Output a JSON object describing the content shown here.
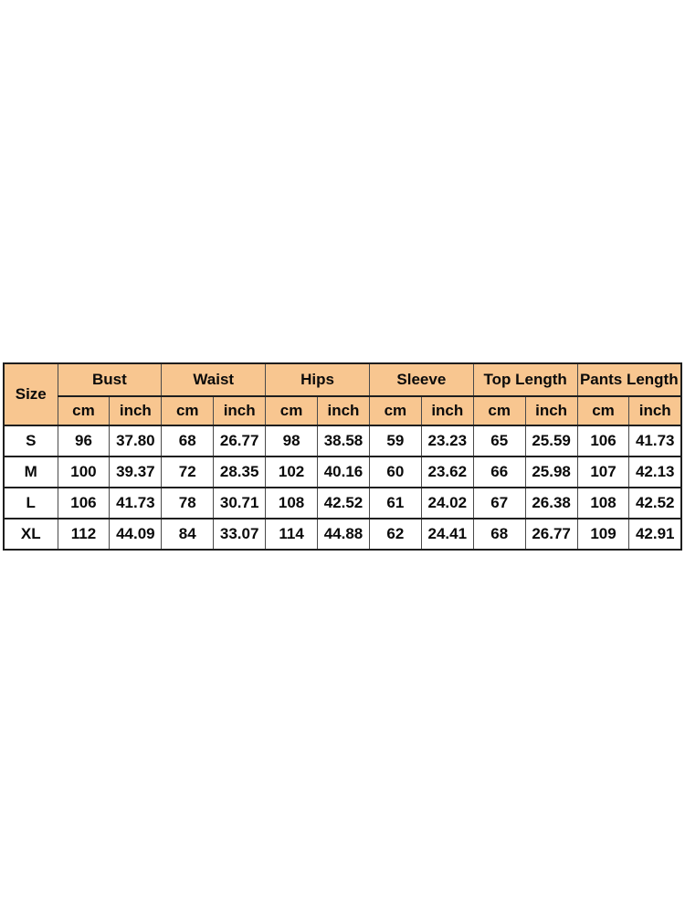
{
  "page": {
    "background_color": "#ffffff"
  },
  "table": {
    "header_bg_color": "#f8c690",
    "border_color": "#1e1e1e",
    "corner": "Size",
    "unit_cm": "cm",
    "unit_inch": "inch",
    "groups": [
      {
        "label": "Bust"
      },
      {
        "label": "Waist"
      },
      {
        "label": "Hips"
      },
      {
        "label": "Sleeve"
      },
      {
        "label": "Top Length"
      },
      {
        "label": "Pants Length"
      }
    ],
    "rows": [
      {
        "size": "S",
        "cells": [
          "96",
          "37.80",
          "68",
          "26.77",
          "98",
          "38.58",
          "59",
          "23.23",
          "65",
          "25.59",
          "106",
          "41.73"
        ]
      },
      {
        "size": "M",
        "cells": [
          "100",
          "39.37",
          "72",
          "28.35",
          "102",
          "40.16",
          "60",
          "23.62",
          "66",
          "25.98",
          "107",
          "42.13"
        ]
      },
      {
        "size": "L",
        "cells": [
          "106",
          "41.73",
          "78",
          "30.71",
          "108",
          "42.52",
          "61",
          "24.02",
          "67",
          "26.38",
          "108",
          "42.52"
        ]
      },
      {
        "size": "XL",
        "cells": [
          "112",
          "44.09",
          "84",
          "33.07",
          "114",
          "44.88",
          "62",
          "24.41",
          "68",
          "26.77",
          "109",
          "42.91"
        ]
      }
    ]
  },
  "chart_data": {
    "type": "table",
    "columns": [
      "Size",
      "Bust cm",
      "Bust inch",
      "Waist cm",
      "Waist inch",
      "Hips cm",
      "Hips inch",
      "Sleeve cm",
      "Sleeve inch",
      "Top Length cm",
      "Top Length inch",
      "Pants Length cm",
      "Pants Length inch"
    ],
    "rows": [
      [
        "S",
        96,
        37.8,
        68,
        26.77,
        98,
        38.58,
        59,
        23.23,
        65,
        25.59,
        106,
        41.73
      ],
      [
        "M",
        100,
        39.37,
        72,
        28.35,
        102,
        40.16,
        60,
        23.62,
        66,
        25.98,
        107,
        42.13
      ],
      [
        "L",
        106,
        41.73,
        78,
        30.71,
        108,
        42.52,
        61,
        24.02,
        67,
        26.38,
        108,
        42.52
      ],
      [
        "XL",
        112,
        44.09,
        84,
        33.07,
        114,
        44.88,
        62,
        24.41,
        68,
        26.77,
        109,
        42.91
      ]
    ]
  }
}
